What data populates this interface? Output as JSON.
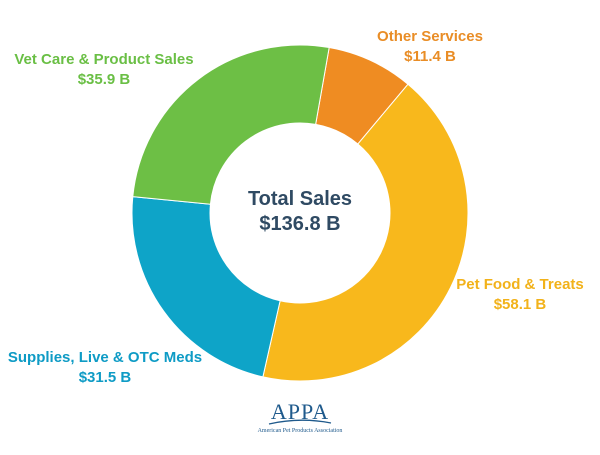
{
  "chart_data": {
    "type": "pie",
    "donut": true,
    "center_title": "Total Sales",
    "center_value": "$136.8 B",
    "slices": [
      {
        "label": "Other Services",
        "value": 11.4,
        "display": "$11.4 B",
        "color": "#ef8c22"
      },
      {
        "label": "Pet Food & Treats",
        "value": 58.1,
        "display": "$58.1 B",
        "color": "#f8b81c"
      },
      {
        "label": "Supplies, Live & OTC Meds",
        "value": 31.5,
        "display": "$31.5 B",
        "color": "#0ea4c8"
      },
      {
        "label": "Vet Care & Product Sales",
        "value": 35.9,
        "display": "$35.9 B",
        "color": "#6dbf45"
      }
    ]
  },
  "logo": {
    "mark": "APPA",
    "subtitle": "American Pet Products Association",
    "color": "#1f5a8c"
  }
}
